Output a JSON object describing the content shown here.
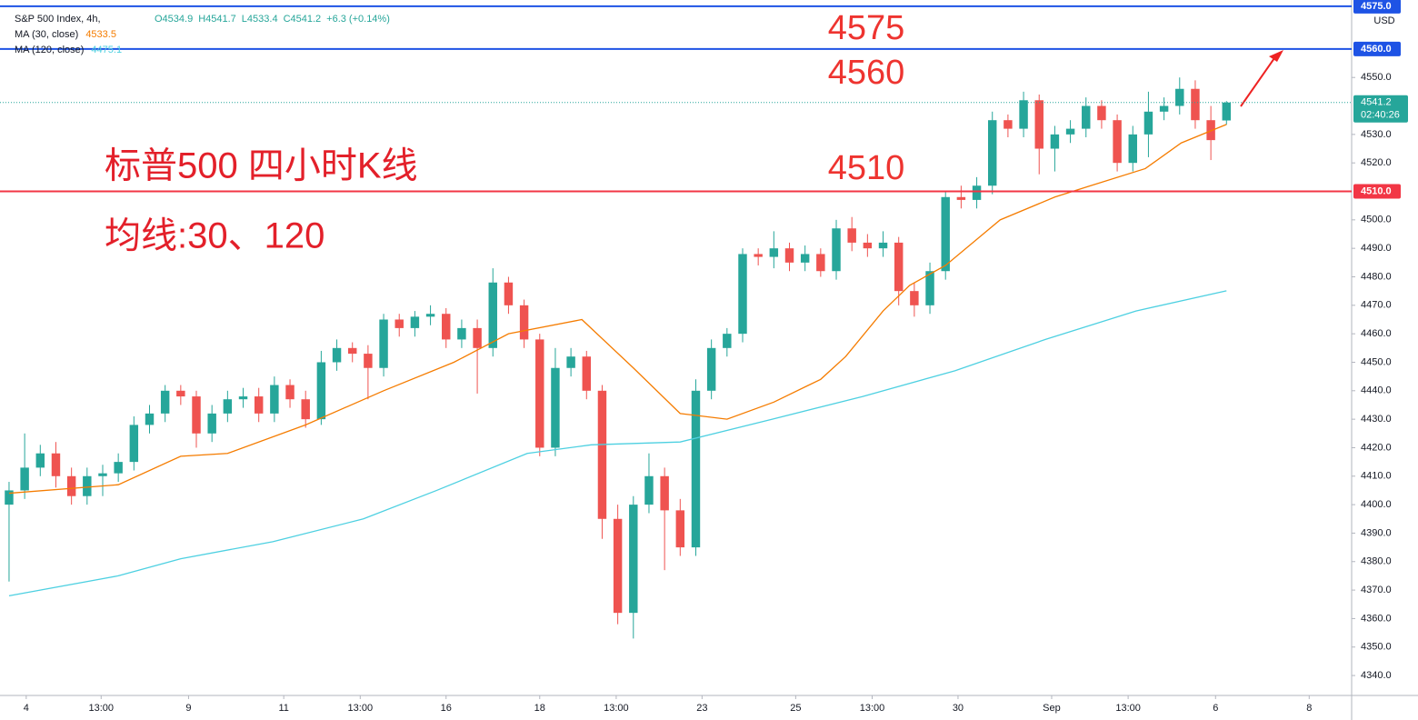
{
  "chart_data": {
    "type": "candlestick",
    "legend": {
      "symbol": "S&P 500 Index, 4h,",
      "ohlc": [
        "O4534.9",
        "H4541.7",
        "L4533.4",
        "C4541.2",
        "+6.3 (+0.14%)"
      ]
    },
    "open": [
      4400,
      4405,
      4413,
      4418,
      4410,
      4403,
      4410,
      4411,
      4415,
      4428,
      4432,
      4440,
      4438,
      4425,
      4432,
      4437,
      4438,
      4432,
      4442,
      4437,
      4430,
      4450,
      4455,
      4453,
      4448,
      4465,
      4462,
      4466,
      4467,
      4458,
      4462,
      4455,
      4478,
      4470,
      4458,
      4420,
      4448,
      4452,
      4440,
      4395,
      4362,
      4400,
      4410,
      4398,
      4385,
      4440,
      4455,
      4460,
      4488,
      4487,
      4490,
      4485,
      4488,
      4482,
      4497,
      4492,
      4490,
      4492,
      4475,
      4470,
      4482,
      4508,
      4507,
      4512,
      4535,
      4532,
      4542,
      4525,
      4530,
      4532,
      4540,
      4535,
      4520,
      4530,
      4538,
      4540,
      4546,
      4535,
      4534.9
    ],
    "high": [
      4408,
      4425,
      4421,
      4422,
      4413,
      4413,
      4414,
      4418,
      4431,
      4435,
      4442,
      4442,
      4440,
      4435,
      4440,
      4441,
      4441,
      4445,
      4444,
      4440,
      4454,
      4458,
      4457,
      4456,
      4467,
      4467,
      4468,
      4470,
      4469,
      4465,
      4465,
      4483,
      4480,
      4472,
      4460,
      4455,
      4455,
      4454,
      4442,
      4400,
      4403,
      4418,
      4413,
      4402,
      4444,
      4458,
      4462,
      4490,
      4490,
      4496,
      4492,
      4491,
      4490,
      4500,
      4501,
      4495,
      4496,
      4494,
      4478,
      4485,
      4510,
      4512,
      4515,
      4538,
      4537,
      4545,
      4544,
      4533,
      4535,
      4543,
      4542,
      4537,
      4533,
      4545,
      4543,
      4550,
      4549,
      4540,
      4541.7
    ],
    "low": [
      4373,
      4402,
      4410,
      4406,
      4400,
      4400,
      4403,
      4408,
      4412,
      4425,
      4429,
      4435,
      4420,
      4422,
      4429,
      4434,
      4429,
      4429,
      4434,
      4427,
      4428,
      4447,
      4450,
      4437,
      4445,
      4459,
      4459,
      4463,
      4455,
      4455,
      4439,
      4452,
      4467,
      4455,
      4417,
      4417,
      4445,
      4437,
      4388,
      4358,
      4353,
      4397,
      4377,
      4382,
      4382,
      4437,
      4452,
      4457,
      4484,
      4483,
      4482,
      4482,
      4480,
      4479,
      4489,
      4487,
      4487,
      4470,
      4466,
      4467,
      4479,
      4504,
      4504,
      4509,
      4529,
      4529,
      4516,
      4517,
      4527,
      4529,
      4532,
      4517,
      4517,
      4522,
      4535,
      4537,
      4532,
      4521,
      4533.4
    ],
    "close": [
      4405,
      4413,
      4418,
      4410,
      4403,
      4410,
      4411,
      4415,
      4428,
      4432,
      4440,
      4438,
      4425,
      4432,
      4437,
      4438,
      4432,
      4442,
      4437,
      4430,
      4450,
      4455,
      4453,
      4448,
      4465,
      4462,
      4466,
      4467,
      4458,
      4462,
      4455,
      4478,
      4470,
      4458,
      4420,
      4448,
      4452,
      4440,
      4395,
      4362,
      4400,
      4410,
      4398,
      4385,
      4440,
      4455,
      4460,
      4488,
      4487,
      4490,
      4485,
      4488,
      4482,
      4497,
      4492,
      4490,
      4492,
      4475,
      4470,
      4482,
      4508,
      4507,
      4512,
      4535,
      4532,
      4542,
      4525,
      4530,
      4532,
      4540,
      4535,
      4520,
      4530,
      4538,
      4540,
      4546,
      4535,
      4528,
      4541.2
    ],
    "up_color": "#26a69a",
    "down_color": "#ef5350",
    "series": [
      {
        "name": "MA (30, close)",
        "last_label": "4533.5",
        "color": "#f57c00",
        "x": [
          0,
          7,
          11,
          14,
          19,
          24,
          28.5,
          32,
          36.7,
          40,
          43,
          46,
          49,
          52,
          53.6,
          56,
          57.7,
          60,
          63.5,
          67,
          69.3,
          72.8,
          75.1,
          78
        ],
        "values": [
          4404,
          4407,
          4417,
          4418,
          4428,
          4440,
          4450,
          4460,
          4465,
          4448,
          4432,
          4430,
          4436,
          4444,
          4452,
          4468,
          4477,
          4484,
          4500,
          4508,
          4512,
          4518,
          4527,
          4533.5
        ]
      },
      {
        "name": "MA (120, close)",
        "last_label": "4475.1",
        "color": "#4dd0e1",
        "x": [
          0,
          7,
          11,
          16.9,
          22.7,
          27.4,
          33.2,
          37.3,
          43,
          48.9,
          54.7,
          60.6,
          66.4,
          72.2,
          78
        ],
        "values": [
          4368,
          4375,
          4381,
          4387,
          4395,
          4405,
          4418,
          4421,
          4422,
          4430,
          4438,
          4447,
          4458,
          4468,
          4475.1
        ]
      }
    ],
    "hlines": [
      {
        "value": 4575,
        "label": "4575.0",
        "color": "#1e53e5"
      },
      {
        "value": 4560,
        "label": "4560.0",
        "color": "#1e53e5"
      },
      {
        "value": 4510,
        "label": "4510.0",
        "color": "#f23645"
      }
    ],
    "last_price": {
      "value": 4541.2,
      "label": "4541.2",
      "countdown": "02:40:26"
    },
    "currency": "USD",
    "annotations": [
      "4575",
      "4560",
      "4510"
    ],
    "title": "标普500 四小时K线",
    "subtitle": "均线:30、120",
    "xlim": [
      -0.58,
      86.02
    ],
    "ylim": [
      4333,
      4577.2
    ],
    "yticks": [
      {
        "value": 4340,
        "label": "4340.0"
      },
      {
        "value": 4350,
        "label": "4350.0"
      },
      {
        "value": 4360,
        "label": "4360.0"
      },
      {
        "value": 4370,
        "label": "4370.0"
      },
      {
        "value": 4380,
        "label": "4380.0"
      },
      {
        "value": 4390,
        "label": "4390.0"
      },
      {
        "value": 4400,
        "label": "4400.0"
      },
      {
        "value": 4410,
        "label": "4410.0"
      },
      {
        "value": 4420,
        "label": "4420.0"
      },
      {
        "value": 4430,
        "label": "4430.0"
      },
      {
        "value": 4440,
        "label": "4440.0"
      },
      {
        "value": 4450,
        "label": "4450.0"
      },
      {
        "value": 4460,
        "label": "4460.0"
      },
      {
        "value": 4470,
        "label": "4470.0"
      },
      {
        "value": 4480,
        "label": "4480.0"
      },
      {
        "value": 4490,
        "label": "4490.0"
      },
      {
        "value": 4500,
        "label": "4500.0"
      },
      {
        "value": 4520,
        "label": "4520.0"
      },
      {
        "value": 4530,
        "label": "4530.0"
      },
      {
        "value": 4550,
        "label": "4550.0"
      }
    ],
    "xticks": [
      {
        "value": 1.1,
        "label": "4"
      },
      {
        "value": 5.9,
        "label": "13:00"
      },
      {
        "value": 11.5,
        "label": "9"
      },
      {
        "value": 17.6,
        "label": "11"
      },
      {
        "value": 22.5,
        "label": "13:00"
      },
      {
        "value": 28.0,
        "label": "16"
      },
      {
        "value": 34.0,
        "label": "18"
      },
      {
        "value": 38.9,
        "label": "13:00"
      },
      {
        "value": 44.4,
        "label": "23"
      },
      {
        "value": 50.4,
        "label": "25"
      },
      {
        "value": 55.3,
        "label": "13:00"
      },
      {
        "value": 60.8,
        "label": "30"
      },
      {
        "value": 66.8,
        "label": "Sep"
      },
      {
        "value": 71.7,
        "label": "13:00"
      },
      {
        "value": 77.3,
        "label": "6"
      },
      {
        "value": 83.3,
        "label": "8"
      }
    ]
  }
}
